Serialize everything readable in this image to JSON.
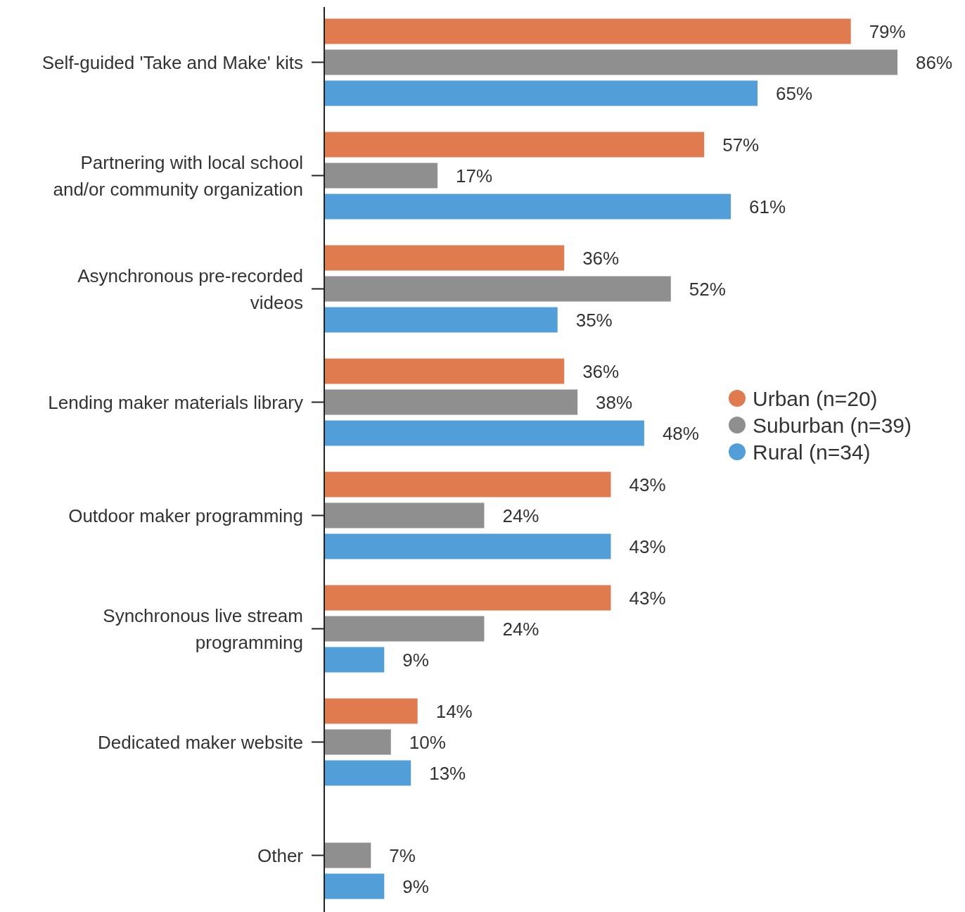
{
  "chart_data": {
    "type": "bar",
    "orientation": "horizontal",
    "categories": [
      "Self-guided 'Take and Make' kits",
      "Partnering with local school and/or community organization",
      "Asynchronous pre-recorded videos",
      "Lending maker materials library",
      "Outdoor maker programming",
      "Synchronous live stream programming",
      "Dedicated maker website",
      "Other"
    ],
    "series": [
      {
        "name": "Urban (n=20)",
        "color": "#e07b4f",
        "values": [
          79,
          57,
          36,
          36,
          43,
          43,
          14,
          null
        ],
        "value_labels": [
          "79%",
          "57%",
          "36%",
          "36%",
          "43%",
          "43%",
          "14%",
          null
        ]
      },
      {
        "name": "Suburban (n=39)",
        "color": "#8f8f8f",
        "values": [
          86,
          17,
          52,
          38,
          24,
          24,
          10,
          7
        ],
        "value_labels": [
          "86%",
          "17%",
          "52%",
          "38%",
          "24%",
          "24%",
          "10%",
          "7%"
        ]
      },
      {
        "name": "Rural (n=34)",
        "color": "#519ed9",
        "values": [
          65,
          61,
          35,
          48,
          43,
          9,
          13,
          9
        ],
        "value_labels": [
          "65%",
          "61%",
          "35%",
          "48%",
          "43%",
          "9%",
          "13%",
          "9%"
        ]
      }
    ],
    "legend": "right",
    "tick_labels": "y"
  }
}
